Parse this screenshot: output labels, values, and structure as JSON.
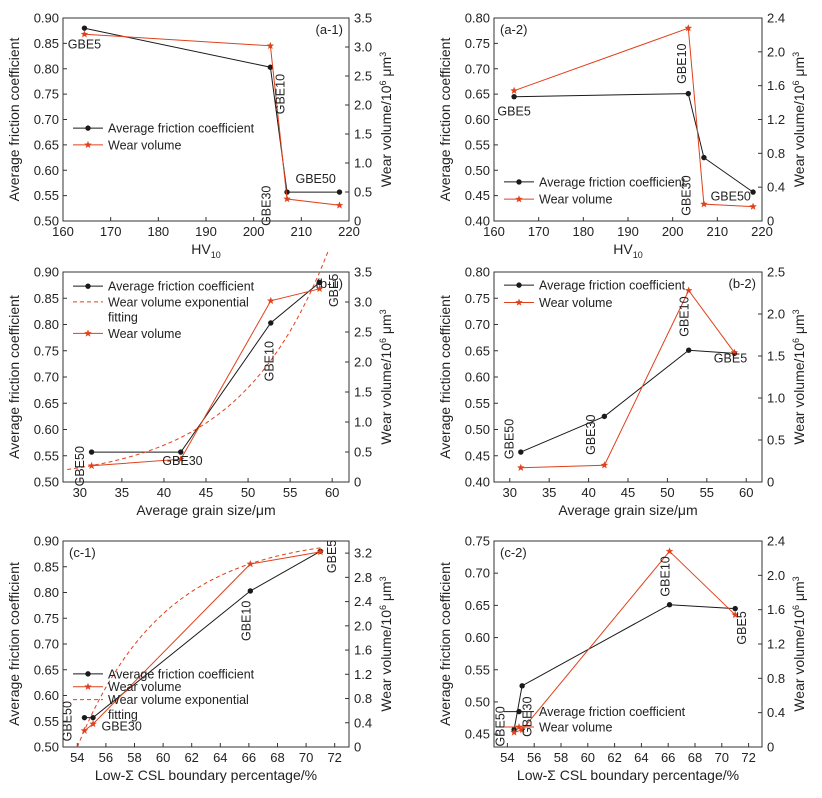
{
  "colors": {
    "friction": "#1a1a1a",
    "wear": "#e0401b",
    "fit": "#e0401b",
    "axis": "#333333"
  },
  "chart_data": [
    {
      "id": "a1",
      "type": "line",
      "panel_label": "(a-1)",
      "xlabel": "HV",
      "xlabel_sub": "10",
      "ylabel": "Average friction coefficient",
      "y2label": "Wear volume/10",
      "y2label_sup": "6",
      "y2label_unit": " μm",
      "xlim": [
        160,
        220
      ],
      "xticks": [
        160,
        170,
        180,
        190,
        200,
        210,
        220
      ],
      "ylim": [
        0.5,
        0.9
      ],
      "yticks": [
        0.5,
        0.55,
        0.6,
        0.65,
        0.7,
        0.75,
        0.8,
        0.85,
        0.9
      ],
      "ydec": 2,
      "y2lim": [
        0,
        3.5
      ],
      "y2ticks": [
        0,
        0.5,
        1,
        1.5,
        2,
        2.5,
        3,
        3.5
      ],
      "y2dec": 1,
      "series": [
        {
          "name": "Average friction coefficient",
          "kind": "friction",
          "points": [
            [
              164.5,
              0.88
            ],
            [
              203.5,
              0.803
            ],
            [
              207,
              0.557
            ],
            [
              218,
              0.557
            ]
          ]
        },
        {
          "name": "Wear volume",
          "kind": "wear",
          "points": [
            [
              164.5,
              3.22
            ],
            [
              203.5,
              3.02
            ],
            [
              207,
              0.38
            ],
            [
              218,
              0.27
            ]
          ]
        }
      ],
      "annotations": [
        {
          "text": "GBE5",
          "x": 164.5,
          "axis": "y",
          "y": 0.84,
          "rot": 0
        },
        {
          "text": "GBE10",
          "x": 206.5,
          "axis": "y",
          "y": 0.75,
          "rot": -90
        },
        {
          "text": "GBE30",
          "x": 203.5,
          "axis": "y",
          "y": 0.53,
          "rot": -90
        },
        {
          "text": "GBE50",
          "x": 213,
          "axis": "y",
          "y": 0.575,
          "rot": 0
        }
      ],
      "legend": [
        {
          "label": "Average friction coefficient",
          "kind": "friction",
          "y": 0.683
        },
        {
          "label": "Wear volume",
          "kind": "wear",
          "y": 0.65
        }
      ]
    },
    {
      "id": "a2",
      "type": "line",
      "panel_label": "(a-2)",
      "xlabel": "HV",
      "xlabel_sub": "10",
      "ylabel": "Average friction coefficient",
      "y2label": "Wear volume/10",
      "y2label_sup": "6",
      "y2label_unit": " μm",
      "xlim": [
        160,
        220
      ],
      "xticks": [
        160,
        170,
        180,
        190,
        200,
        210,
        220
      ],
      "ylim": [
        0.4,
        0.8
      ],
      "yticks": [
        0.4,
        0.45,
        0.5,
        0.55,
        0.6,
        0.65,
        0.7,
        0.75,
        0.8
      ],
      "ydec": 2,
      "y2lim": [
        0,
        2.4
      ],
      "y2ticks": [
        0,
        0.4,
        0.8,
        1.2,
        1.6,
        2.0,
        2.4
      ],
      "y2dec": 1,
      "series": [
        {
          "name": "Average friction coefficient",
          "kind": "friction",
          "points": [
            [
              164.5,
              0.645
            ],
            [
              203.5,
              0.651
            ],
            [
              207,
              0.525
            ],
            [
              218,
              0.457
            ]
          ]
        },
        {
          "name": "Wear volume",
          "kind": "wear",
          "points": [
            [
              164.5,
              1.54
            ],
            [
              203.5,
              2.28
            ],
            [
              207,
              0.2
            ],
            [
              218,
              0.17
            ]
          ]
        }
      ],
      "annotations": [
        {
          "text": "GBE5",
          "x": 164.5,
          "axis": "y",
          "y": 0.608,
          "rot": 0
        },
        {
          "text": "GBE10",
          "x": 203,
          "axis": "y",
          "y": 0.71,
          "rot": -90
        },
        {
          "text": "GBE30",
          "x": 204,
          "axis": "y",
          "y": 0.45,
          "rot": -90
        },
        {
          "text": "GBE50",
          "x": 213,
          "axis": "y",
          "y": 0.44,
          "rot": 0
        }
      ],
      "legend": [
        {
          "label": "Average friction coefficient",
          "kind": "friction",
          "y": 0.477
        },
        {
          "label": "Wear volume",
          "kind": "wear",
          "y": 0.443
        }
      ]
    },
    {
      "id": "b1",
      "type": "line",
      "panel_label": "(b-1)",
      "panel_label_pos": "right",
      "xlabel": "Average grain size/μm",
      "xlabel_sub": "",
      "ylabel": "Average friction coefficient",
      "y2label": "Wear volume/10",
      "y2label_sup": "6",
      "y2label_unit": " μm",
      "xlim": [
        28,
        62
      ],
      "xticks": [
        30,
        35,
        40,
        45,
        50,
        55,
        60
      ],
      "ylim": [
        0.5,
        0.9
      ],
      "yticks": [
        0.5,
        0.55,
        0.6,
        0.65,
        0.7,
        0.75,
        0.8,
        0.85,
        0.9
      ],
      "ydec": 2,
      "y2lim": [
        0,
        3.5
      ],
      "y2ticks": [
        0,
        0.5,
        1,
        1.5,
        2,
        2.5,
        3,
        3.5
      ],
      "y2dec": 1,
      "series": [
        {
          "name": "Average friction coefficient",
          "kind": "friction",
          "points": [
            [
              31.4,
              0.557
            ],
            [
              42,
              0.557
            ],
            [
              52.7,
              0.803
            ],
            [
              58.5,
              0.88
            ]
          ]
        },
        {
          "name": "Wear volume exponential fitting",
          "kind": "fit",
          "curve": {
            "a": 0.0143,
            "b": 0.094,
            "x0": 28.5,
            "x1": 59.5
          }
        },
        {
          "name": "Wear volume",
          "kind": "wear",
          "points": [
            [
              31.4,
              0.27
            ],
            [
              42,
              0.38
            ],
            [
              52.7,
              3.02
            ],
            [
              58.5,
              3.22
            ]
          ]
        }
      ],
      "annotations": [
        {
          "text": "GBE5",
          "x": 60.7,
          "axis": "y",
          "y": 0.865,
          "rot": -90
        },
        {
          "text": "GBE10",
          "x": 53,
          "axis": "y",
          "y": 0.73,
          "rot": -90
        },
        {
          "text": "GBE50",
          "x": 30.5,
          "axis": "y",
          "y": 0.53,
          "rot": -90
        },
        {
          "text": "GBE30",
          "x": 42.2,
          "axis": "y",
          "y": 0.532,
          "rot": 0
        }
      ],
      "legend": [
        {
          "label": "Average friction coefficient",
          "kind": "friction",
          "y": 0.873
        },
        {
          "label": "Wear volume exponential",
          "label2": "fitting",
          "kind": "fit",
          "y": 0.843
        },
        {
          "label": "Wear volume",
          "kind": "wear",
          "y": 0.783
        }
      ]
    },
    {
      "id": "b2",
      "type": "line",
      "panel_label": "(b-2)",
      "panel_label_pos": "right",
      "xlabel": "Average grain size/μm",
      "xlabel_sub": "",
      "ylabel": "Average friction coefficient",
      "y2label": "Wear volume/10",
      "y2label_sup": "6",
      "y2label_unit": " μm",
      "xlim": [
        28,
        62
      ],
      "xticks": [
        30,
        35,
        40,
        45,
        50,
        55,
        60
      ],
      "ylim": [
        0.4,
        0.8
      ],
      "yticks": [
        0.4,
        0.45,
        0.5,
        0.55,
        0.6,
        0.65,
        0.7,
        0.75,
        0.8
      ],
      "ydec": 2,
      "y2lim": [
        0,
        2.5
      ],
      "y2ticks": [
        0,
        0.5,
        1,
        1.5,
        2,
        2.5
      ],
      "y2dec": 1,
      "series": [
        {
          "name": "Average friction coefficient",
          "kind": "friction",
          "points": [
            [
              31.4,
              0.457
            ],
            [
              42,
              0.525
            ],
            [
              52.7,
              0.651
            ],
            [
              58.5,
              0.645
            ]
          ]
        },
        {
          "name": "Wear volume",
          "kind": "wear",
          "points": [
            [
              31.4,
              0.17
            ],
            [
              42,
              0.2
            ],
            [
              52.7,
              2.28
            ],
            [
              58.5,
              1.54
            ]
          ]
        }
      ],
      "annotations": [
        {
          "text": "GBE50",
          "x": 30.5,
          "axis": "y",
          "y": 0.482,
          "rot": -90
        },
        {
          "text": "GBE30",
          "x": 40.8,
          "axis": "y",
          "y": 0.49,
          "rot": -90
        },
        {
          "text": "GBE10",
          "x": 52.7,
          "axis": "y",
          "y": 0.715,
          "rot": -90
        },
        {
          "text": "GBE5",
          "x": 58,
          "axis": "y",
          "y": 0.628,
          "rot": 0
        }
      ],
      "legend": [
        {
          "label": "Average friction coefficient",
          "kind": "friction",
          "y": 0.775
        },
        {
          "label": "Wear volume",
          "kind": "wear",
          "y": 0.742
        }
      ]
    },
    {
      "id": "c1",
      "type": "line",
      "panel_label": "(c-1)",
      "xlabel": "Low-Σ CSL boundary percentage/%",
      "xlabel_sub": "",
      "ylabel": "Average friction coefficient",
      "y2label": "Wear volume/10",
      "y2label_sup": "6",
      "y2label_unit": " μm",
      "xlim": [
        53,
        73
      ],
      "xticks": [
        54,
        56,
        58,
        60,
        62,
        64,
        66,
        68,
        70,
        72
      ],
      "ylim": [
        0.5,
        0.9
      ],
      "yticks": [
        0.5,
        0.55,
        0.6,
        0.65,
        0.7,
        0.75,
        0.8,
        0.85,
        0.9
      ],
      "ydec": 2,
      "y2lim": [
        0,
        3.4
      ],
      "y2ticks": [
        0,
        0.4,
        0.8,
        1.2,
        1.6,
        2.0,
        2.4,
        2.8,
        3.2
      ],
      "y2dec": 1,
      "series": [
        {
          "name": "Average friction coefficient",
          "kind": "friction",
          "points": [
            [
              54.5,
              0.557
            ],
            [
              55.1,
              0.557
            ],
            [
              66.1,
              0.803
            ],
            [
              71,
              0.88
            ]
          ]
        },
        {
          "name": "Wear volume",
          "kind": "wear",
          "points": [
            [
              54.5,
              0.27
            ],
            [
              55.1,
              0.38
            ],
            [
              66.1,
              3.02
            ],
            [
              71,
              3.22
            ]
          ]
        },
        {
          "name": "Wear volume exponential fitting",
          "kind": "fit",
          "curve": {
            "type": "sat",
            "A": 3.5,
            "k": 0.165,
            "x0": 54.0,
            "xs": 54.0,
            "x1": 71.2
          }
        }
      ],
      "annotations": [
        {
          "text": "GBE5",
          "x": 72.1,
          "axis": "y",
          "y": 0.87,
          "rot": -90
        },
        {
          "text": "GBE10",
          "x": 66.1,
          "axis": "y",
          "y": 0.745,
          "rot": -90
        },
        {
          "text": "GBE50",
          "x": 53.6,
          "axis": "y",
          "y": 0.55,
          "rot": -90
        },
        {
          "text": "GBE30",
          "x": 57.1,
          "axis": "y",
          "y": 0.532,
          "rot": 0
        }
      ],
      "legend": [
        {
          "label": "Average friction coefficient",
          "kind": "friction",
          "y": 0.642
        },
        {
          "label": "Wear volume",
          "kind": "wear",
          "y": 0.617
        },
        {
          "label": "Wear volume exponential",
          "label2": "fitting",
          "kind": "fit",
          "y": 0.592
        }
      ]
    },
    {
      "id": "c2",
      "type": "line",
      "panel_label": "(c-2)",
      "xlabel": "Low-Σ CSL boundary percentage/%",
      "xlabel_sub": "",
      "ylabel": "Average friction coefficient",
      "y2label": "Wear volume/10",
      "y2label_sup": "6",
      "y2label_unit": " μm",
      "xlim": [
        53,
        73
      ],
      "xticks": [
        54,
        56,
        58,
        60,
        62,
        64,
        66,
        68,
        70,
        72
      ],
      "ylim": [
        0.43,
        0.75
      ],
      "yticks": [
        0.45,
        0.5,
        0.55,
        0.6,
        0.65,
        0.7,
        0.75
      ],
      "ydec": 2,
      "y2lim": [
        0,
        2.4
      ],
      "y2ticks": [
        0,
        0.4,
        0.8,
        1.2,
        1.6,
        2.0,
        2.4
      ],
      "y2dec": 1,
      "series": [
        {
          "name": "Average friction coefficient",
          "kind": "friction",
          "points": [
            [
              54.5,
              0.457
            ],
            [
              55.1,
              0.525
            ],
            [
              66.1,
              0.651
            ],
            [
              71,
              0.645
            ]
          ]
        },
        {
          "name": "Wear volume",
          "kind": "wear",
          "points": [
            [
              54.5,
              0.17
            ],
            [
              55.1,
              0.2
            ],
            [
              66.1,
              2.28
            ],
            [
              71,
              1.54
            ]
          ]
        }
      ],
      "annotations": [
        {
          "text": "GBE5",
          "x": 71.8,
          "axis": "y",
          "y": 0.615,
          "rot": -90
        },
        {
          "text": "GBE10",
          "x": 66.1,
          "axis": "y",
          "y": 0.695,
          "rot": -90
        },
        {
          "text": "GBE50",
          "x": 53.8,
          "axis": "y",
          "y": 0.462,
          "rot": -90
        },
        {
          "text": "GBE30",
          "x": 55.8,
          "axis": "y",
          "y": 0.477,
          "rot": -90
        }
      ],
      "legend": [
        {
          "label": "Average friction coefficient",
          "kind": "friction",
          "y": 0.485
        },
        {
          "label": "Wear volume",
          "kind": "wear",
          "y": 0.461
        }
      ]
    }
  ]
}
